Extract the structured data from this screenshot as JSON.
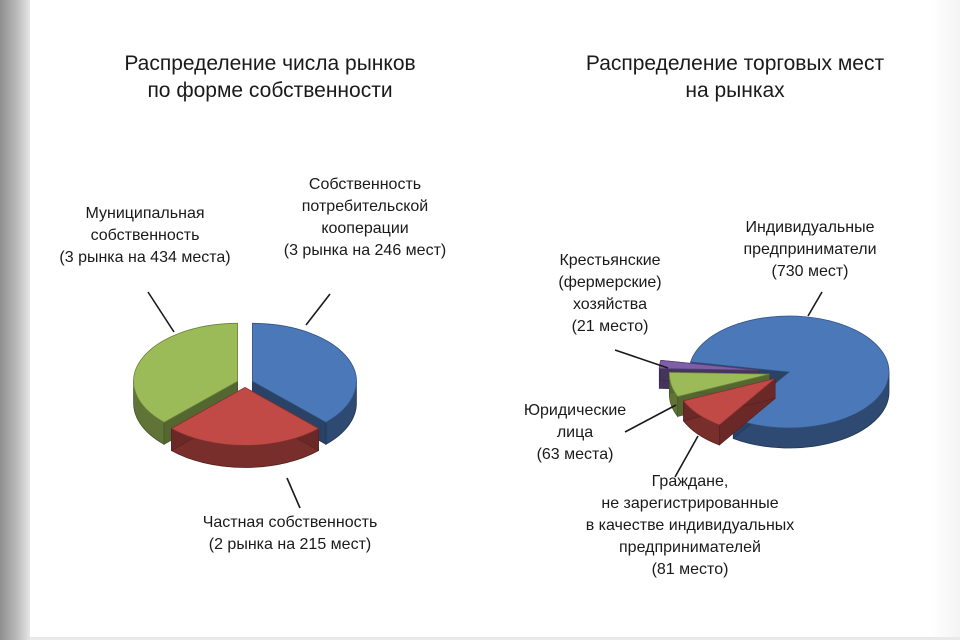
{
  "chart_data": [
    {
      "type": "pie",
      "title": "Распределение числа рынков\nпо форме собственности",
      "slices": [
        {
          "label": "Собственность\nпотребительской\nкооперации\n(3 рынка на 246 мест)",
          "value": 3,
          "color": "#4a78b8"
        },
        {
          "label": "Частная собственность\n(2 рынка на 215 мест)",
          "value": 2,
          "color": "#c14a46"
        },
        {
          "label": "Муниципальная\nсобственность\n(3 рынка на 434 места)",
          "value": 3,
          "color": "#9bbb59"
        }
      ]
    },
    {
      "type": "pie",
      "title": "Распределение торговых мест\nна рынках",
      "slices": [
        {
          "label": "Индивидуальные\nпредприниматели\n(730 мест)",
          "value": 730,
          "color": "#4a78b8"
        },
        {
          "label": "Граждане,\nне зарегистрированные\nв качестве индивидуальных\nпредпринимателей\n(81 место)",
          "value": 81,
          "color": "#c14a46"
        },
        {
          "label": "Юридические\nлица\n(63 места)",
          "value": 63,
          "color": "#9bbb59"
        },
        {
          "label": "Крестьянские\n(фермерские)\nхозяйства\n(21 место)",
          "value": 21,
          "color": "#7e5ea6"
        }
      ]
    }
  ]
}
